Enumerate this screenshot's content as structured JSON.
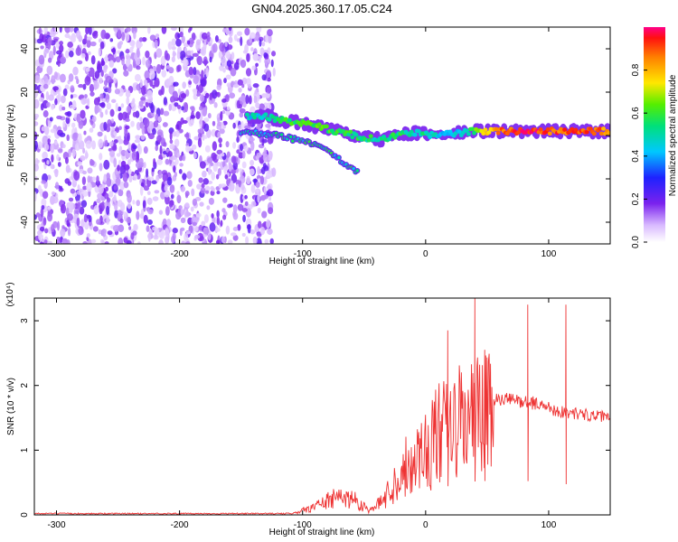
{
  "title": "GN04.2025.360.17.05.C24",
  "chart_data": [
    {
      "type": "heatmap",
      "name": "spectrogram",
      "xlabel": "Height of straight line (km)",
      "ylabel": "Frequency (Hz)",
      "xlim": [
        -318,
        150
      ],
      "ylim": [
        -50,
        50
      ],
      "xticks": [
        -300,
        -200,
        -100,
        0,
        100
      ],
      "yticks": [
        -40,
        -20,
        0,
        20,
        40
      ],
      "xtick_labels": [
        "-300",
        "-200",
        "-100",
        "0",
        "100"
      ],
      "ytick_labels": [
        "-40",
        "-20",
        "0",
        "20",
        "40"
      ],
      "noise_region_x": [
        -318,
        -123
      ],
      "bright_trace": [
        {
          "x": -145,
          "y": 9,
          "a": 0.45
        },
        {
          "x": -130,
          "y": 9,
          "a": 0.5
        },
        {
          "x": -118,
          "y": 7,
          "a": 0.55
        },
        {
          "x": -105,
          "y": 6,
          "a": 0.6
        },
        {
          "x": -95,
          "y": 5,
          "a": 0.62
        },
        {
          "x": -80,
          "y": 3,
          "a": 0.6
        },
        {
          "x": -65,
          "y": 1,
          "a": 0.58
        },
        {
          "x": -50,
          "y": -1,
          "a": 0.55
        },
        {
          "x": -35,
          "y": -2,
          "a": 0.5
        },
        {
          "x": -20,
          "y": 1,
          "a": 0.55
        },
        {
          "x": -5,
          "y": 1,
          "a": 0.5
        },
        {
          "x": 10,
          "y": 0,
          "a": 0.45
        },
        {
          "x": 25,
          "y": 1,
          "a": 0.45
        },
        {
          "x": 40,
          "y": 2,
          "a": 0.6
        },
        {
          "x": 60,
          "y": 2,
          "a": 0.85
        },
        {
          "x": 80,
          "y": 2,
          "a": 0.95
        },
        {
          "x": 100,
          "y": 2,
          "a": 0.9
        },
        {
          "x": 120,
          "y": 2,
          "a": 0.88
        },
        {
          "x": 150,
          "y": 2,
          "a": 0.86
        }
      ],
      "lower_branch": [
        {
          "x": -150,
          "y": 2
        },
        {
          "x": -120,
          "y": 0
        },
        {
          "x": -90,
          "y": -4
        },
        {
          "x": -75,
          "y": -9
        },
        {
          "x": -62,
          "y": -14
        },
        {
          "x": -55,
          "y": -17
        }
      ]
    },
    {
      "type": "line",
      "name": "snr",
      "xlabel": "Height of straight line (km)",
      "ylabel": "SNR (10 * v/v)",
      "y_multiplier": "(x10⁴)",
      "xlim": [
        -318,
        150
      ],
      "ylim": [
        0,
        3.35
      ],
      "xticks": [
        -300,
        -200,
        -100,
        0,
        100
      ],
      "yticks": [
        0,
        1,
        2,
        3
      ],
      "xtick_labels": [
        "-300",
        "-200",
        "-100",
        "0",
        "100"
      ],
      "ytick_labels": [
        "0",
        "1",
        "2",
        "3"
      ],
      "color": "#ee3333",
      "envelope": [
        {
          "x": -318,
          "y": 0.02
        },
        {
          "x": -110,
          "y": 0.02
        },
        {
          "x": -100,
          "y": 0.08
        },
        {
          "x": -90,
          "y": 0.15
        },
        {
          "x": -80,
          "y": 0.25
        },
        {
          "x": -70,
          "y": 0.3
        },
        {
          "x": -60,
          "y": 0.3
        },
        {
          "x": -50,
          "y": 0.15
        },
        {
          "x": -45,
          "y": 0.08
        },
        {
          "x": -40,
          "y": 0.15
        },
        {
          "x": -30,
          "y": 0.4
        },
        {
          "x": -20,
          "y": 0.75
        },
        {
          "x": -10,
          "y": 1.0
        },
        {
          "x": 0,
          "y": 1.15
        },
        {
          "x": 10,
          "y": 1.4
        },
        {
          "x": 20,
          "y": 1.5
        },
        {
          "x": 30,
          "y": 1.65
        },
        {
          "x": 40,
          "y": 1.72
        },
        {
          "x": 50,
          "y": 1.75
        },
        {
          "x": 60,
          "y": 1.78
        },
        {
          "x": 70,
          "y": 1.78
        },
        {
          "x": 80,
          "y": 1.75
        },
        {
          "x": 90,
          "y": 1.72
        },
        {
          "x": 100,
          "y": 1.66
        },
        {
          "x": 108,
          "y": 1.6
        },
        {
          "x": 115,
          "y": 1.58
        },
        {
          "x": 130,
          "y": 1.55
        },
        {
          "x": 150,
          "y": 1.5
        }
      ],
      "spikes": [
        {
          "x": 40,
          "y": 3.35
        },
        {
          "x": 83,
          "y": 3.25
        },
        {
          "x": 114,
          "y": 3.25
        },
        {
          "x": 18,
          "y": 2.85
        },
        {
          "x": 48,
          "y": 2.55
        }
      ]
    },
    {
      "type": "colorbar",
      "name": "colorbar",
      "label": "Normalized spectral amplitude",
      "range": [
        0,
        1
      ],
      "ticks": [
        0.0,
        0.2,
        0.4,
        0.6,
        0.8
      ],
      "tick_labels": [
        "0.0",
        "0.2",
        "0.4",
        "0.6",
        "0.8"
      ]
    }
  ]
}
